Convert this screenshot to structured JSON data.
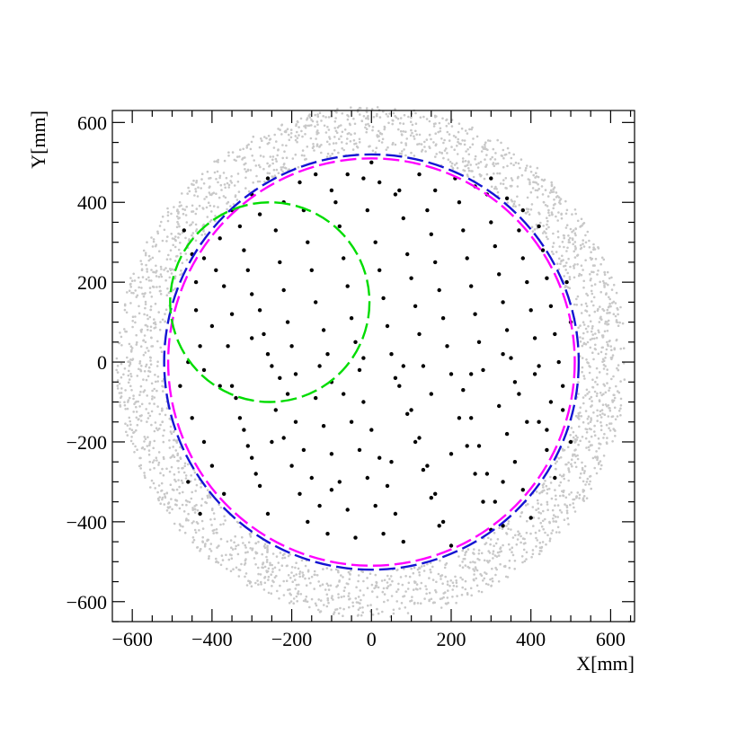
{
  "chart_data": {
    "type": "scatter",
    "title": "",
    "xlabel": "X[mm]",
    "ylabel": "Y[mm]",
    "xlim": [
      -650,
      660
    ],
    "ylim": [
      -650,
      630
    ],
    "grid": false,
    "x_ticks": [
      -600,
      -400,
      -200,
      0,
      200,
      400,
      600
    ],
    "y_ticks": [
      -600,
      -400,
      -200,
      0,
      200,
      400,
      600
    ],
    "x_tick_labels": [
      "−600",
      "−400",
      "−200",
      "0",
      "200",
      "400",
      "600"
    ],
    "y_tick_labels": [
      "−600",
      "−400",
      "−200",
      "0",
      "200",
      "400",
      "600"
    ],
    "series": [
      {
        "kind": "background-ring-points",
        "color": "#c8c8c8",
        "inner_radius": 520,
        "outer_radius": 640,
        "approx_count": 2600
      },
      {
        "kind": "points",
        "color": "#000000",
        "points": [
          [
            -470,
            330
          ],
          [
            -450,
            270
          ],
          [
            -440,
            200
          ],
          [
            -430,
            40
          ],
          [
            -420,
            -20
          ],
          [
            -390,
            230
          ],
          [
            -380,
            310
          ],
          [
            -370,
            190
          ],
          [
            -350,
            120
          ],
          [
            -320,
            280
          ],
          [
            -310,
            230
          ],
          [
            -300,
            170
          ],
          [
            -280,
            130
          ],
          [
            -270,
            70
          ],
          [
            -260,
            20
          ],
          [
            -250,
            -10
          ],
          [
            -240,
            330
          ],
          [
            -230,
            250
          ],
          [
            -220,
            180
          ],
          [
            -210,
            100
          ],
          [
            -200,
            40
          ],
          [
            -190,
            -30
          ],
          [
            -180,
            450
          ],
          [
            -170,
            380
          ],
          [
            -160,
            300
          ],
          [
            -150,
            230
          ],
          [
            -140,
            150
          ],
          [
            -120,
            80
          ],
          [
            -110,
            20
          ],
          [
            -100,
            -50
          ],
          [
            -90,
            400
          ],
          [
            -80,
            340
          ],
          [
            -70,
            260
          ],
          [
            -60,
            190
          ],
          [
            -50,
            110
          ],
          [
            -40,
            50
          ],
          [
            -30,
            -20
          ],
          [
            -20,
            460
          ],
          [
            -10,
            380
          ],
          [
            0,
            500
          ],
          [
            10,
            300
          ],
          [
            20,
            230
          ],
          [
            30,
            160
          ],
          [
            40,
            90
          ],
          [
            50,
            20
          ],
          [
            60,
            -40
          ],
          [
            70,
            430
          ],
          [
            80,
            360
          ],
          [
            90,
            270
          ],
          [
            100,
            210
          ],
          [
            110,
            140
          ],
          [
            120,
            70
          ],
          [
            130,
            -10
          ],
          [
            140,
            380
          ],
          [
            150,
            320
          ],
          [
            160,
            250
          ],
          [
            170,
            180
          ],
          [
            180,
            110
          ],
          [
            190,
            40
          ],
          [
            200,
            -30
          ],
          [
            210,
            460
          ],
          [
            220,
            400
          ],
          [
            230,
            330
          ],
          [
            240,
            260
          ],
          [
            250,
            190
          ],
          [
            260,
            120
          ],
          [
            270,
            50
          ],
          [
            280,
            -20
          ],
          [
            290,
            420
          ],
          [
            300,
            350
          ],
          [
            310,
            290
          ],
          [
            320,
            220
          ],
          [
            330,
            150
          ],
          [
            340,
            80
          ],
          [
            350,
            10
          ],
          [
            360,
            -50
          ],
          [
            370,
            330
          ],
          [
            380,
            260
          ],
          [
            390,
            200
          ],
          [
            400,
            130
          ],
          [
            410,
            60
          ],
          [
            420,
            -10
          ],
          [
            430,
            280
          ],
          [
            440,
            210
          ],
          [
            450,
            140
          ],
          [
            460,
            70
          ],
          [
            470,
            0
          ],
          [
            480,
            -60
          ],
          [
            490,
            200
          ],
          [
            500,
            100
          ],
          [
            -480,
            -60
          ],
          [
            -450,
            -140
          ],
          [
            -420,
            -200
          ],
          [
            -400,
            -260
          ],
          [
            -370,
            -330
          ],
          [
            -340,
            -90
          ],
          [
            -320,
            -170
          ],
          [
            -300,
            -240
          ],
          [
            -280,
            -310
          ],
          [
            -260,
            -380
          ],
          [
            -240,
            -120
          ],
          [
            -220,
            -190
          ],
          [
            -200,
            -260
          ],
          [
            -180,
            -330
          ],
          [
            -160,
            -400
          ],
          [
            -140,
            -90
          ],
          [
            -120,
            -160
          ],
          [
            -100,
            -230
          ],
          [
            -80,
            -300
          ],
          [
            -60,
            -370
          ],
          [
            -40,
            -440
          ],
          [
            -20,
            -100
          ],
          [
            0,
            -170
          ],
          [
            20,
            -240
          ],
          [
            40,
            -310
          ],
          [
            60,
            -380
          ],
          [
            80,
            -450
          ],
          [
            100,
            -120
          ],
          [
            120,
            -190
          ],
          [
            140,
            -260
          ],
          [
            160,
            -330
          ],
          [
            180,
            -400
          ],
          [
            200,
            -460
          ],
          [
            220,
            -140
          ],
          [
            240,
            -210
          ],
          [
            260,
            -280
          ],
          [
            280,
            -350
          ],
          [
            300,
            -420
          ],
          [
            320,
            -110
          ],
          [
            340,
            -180
          ],
          [
            360,
            -250
          ],
          [
            380,
            -320
          ],
          [
            400,
            -390
          ],
          [
            420,
            -150
          ],
          [
            440,
            -220
          ],
          [
            460,
            -290
          ],
          [
            480,
            -120
          ],
          [
            500,
            -200
          ],
          [
            -460,
            -300
          ],
          [
            -430,
            -380
          ],
          [
            -350,
            -60
          ],
          [
            -330,
            -140
          ],
          [
            -310,
            -210
          ],
          [
            -290,
            -280
          ],
          [
            -210,
            -80
          ],
          [
            -190,
            -150
          ],
          [
            -170,
            -220
          ],
          [
            -150,
            -290
          ],
          [
            -130,
            -360
          ],
          [
            -110,
            -430
          ],
          [
            -70,
            -80
          ],
          [
            -50,
            -150
          ],
          [
            -30,
            -220
          ],
          [
            -10,
            -290
          ],
          [
            10,
            -360
          ],
          [
            30,
            -430
          ],
          [
            70,
            -60
          ],
          [
            90,
            -130
          ],
          [
            110,
            -200
          ],
          [
            130,
            -270
          ],
          [
            150,
            -340
          ],
          [
            170,
            -410
          ],
          [
            230,
            -70
          ],
          [
            250,
            -140
          ],
          [
            270,
            -210
          ],
          [
            290,
            -280
          ],
          [
            310,
            -350
          ],
          [
            330,
            -410
          ],
          [
            370,
            -80
          ],
          [
            390,
            -150
          ],
          [
            -260,
            460
          ],
          [
            -220,
            400
          ],
          [
            -140,
            470
          ],
          [
            -100,
            430
          ],
          [
            -60,
            470
          ],
          [
            20,
            450
          ],
          [
            60,
            420
          ],
          [
            120,
            470
          ],
          [
            160,
            430
          ],
          [
            260,
            440
          ],
          [
            300,
            460
          ],
          [
            340,
            410
          ],
          [
            380,
            380
          ],
          [
            420,
            340
          ],
          [
            -350,
            380
          ],
          [
            -300,
            420
          ],
          [
            -330,
            340
          ],
          [
            -280,
            370
          ],
          [
            -440,
            130
          ],
          [
            -400,
            90
          ],
          [
            -460,
            0
          ],
          [
            -360,
            40
          ],
          [
            -300,
            60
          ],
          [
            -230,
            -40
          ],
          [
            -130,
            -10
          ],
          [
            -20,
            10
          ],
          [
            80,
            -10
          ],
          [
            150,
            -80
          ],
          [
            250,
            -30
          ],
          [
            330,
            20
          ],
          [
            410,
            -30
          ],
          [
            450,
            -100
          ],
          [
            -380,
            -60
          ],
          [
            -250,
            -200
          ],
          [
            -100,
            -320
          ],
          [
            50,
            -250
          ],
          [
            200,
            -230
          ],
          [
            330,
            -300
          ],
          [
            440,
            -170
          ],
          [
            -420,
            260
          ]
        ]
      }
    ],
    "circles": [
      {
        "color": "#1414d2",
        "cx": 0,
        "cy": 0,
        "r": 520,
        "dash": "long"
      },
      {
        "color": "#ff00ff",
        "cx": 0,
        "cy": 0,
        "r": 510,
        "dash": "long"
      },
      {
        "color": "#00dc00",
        "cx": -255,
        "cy": 150,
        "r": 250,
        "dash": "long"
      }
    ]
  }
}
